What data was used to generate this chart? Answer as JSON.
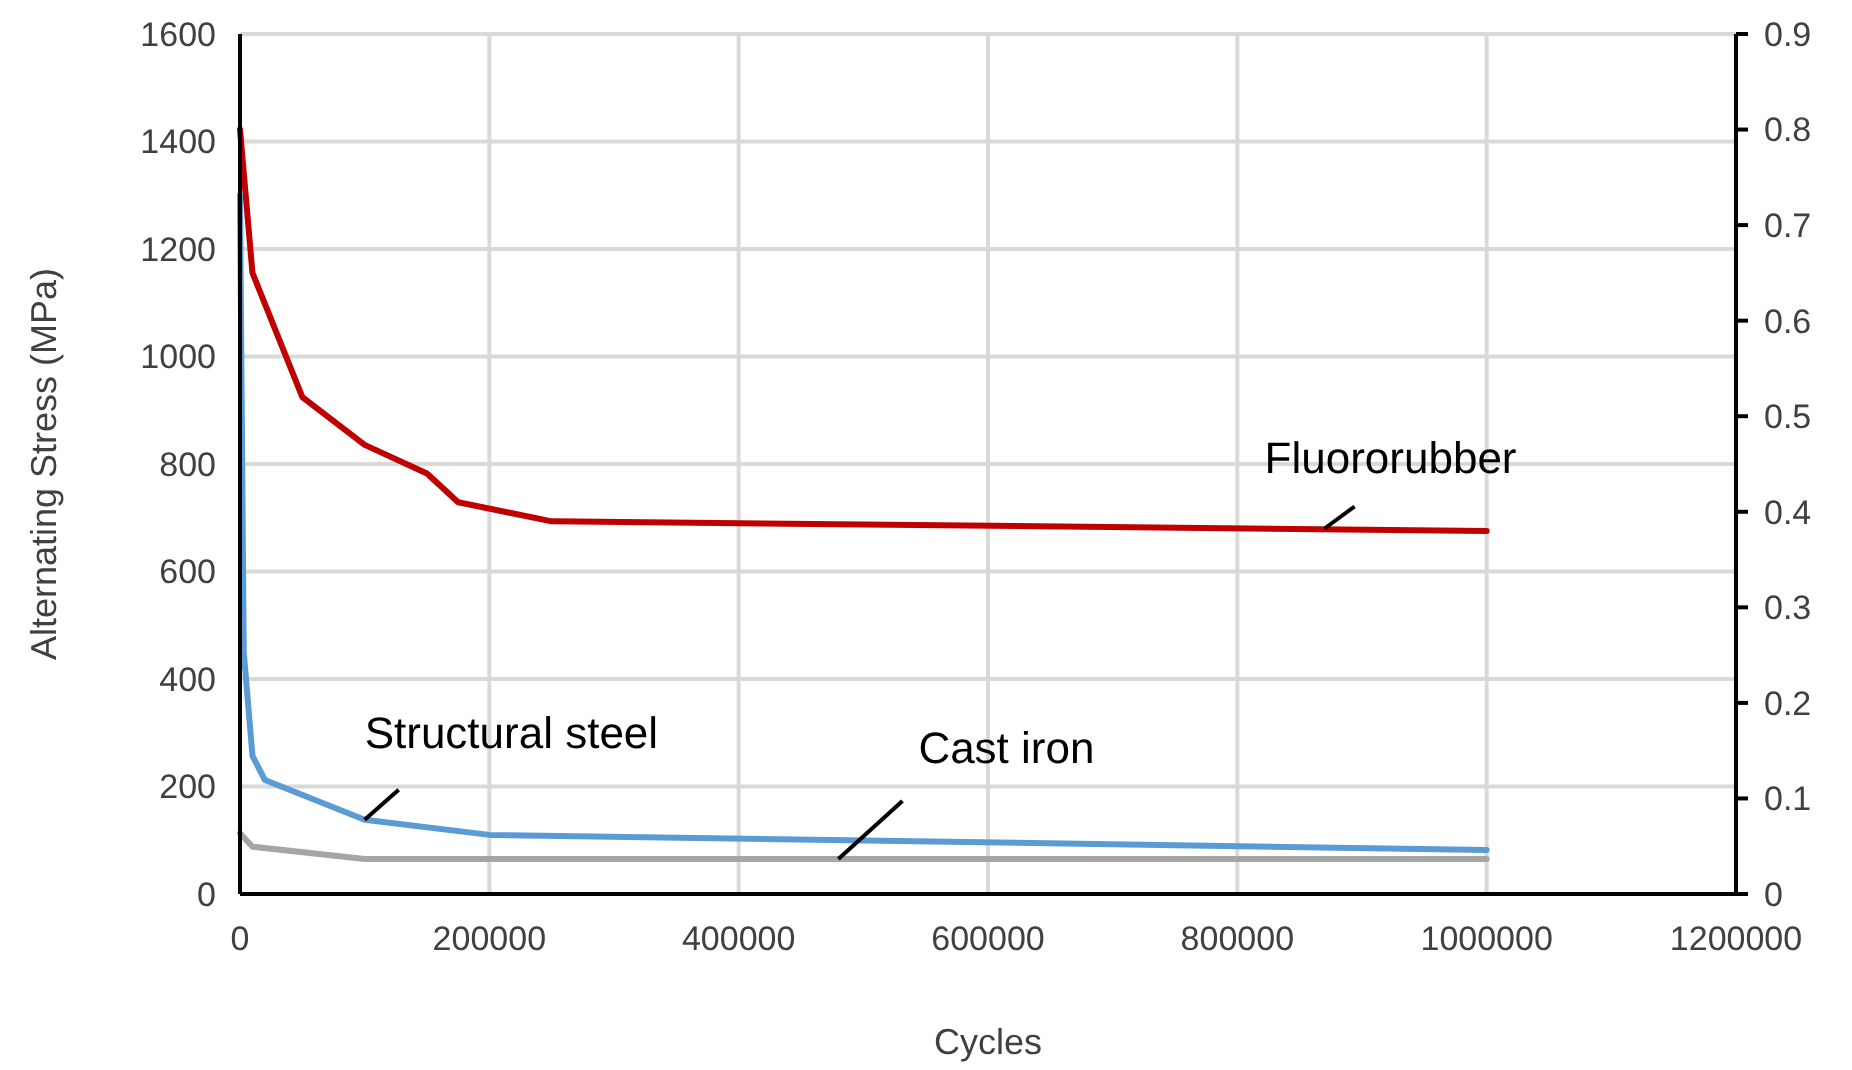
{
  "chart_data": {
    "type": "line",
    "xlabel": "Cycles",
    "ylabel": "Alternating Stress (MPa)",
    "xlim": [
      0,
      1200000
    ],
    "xticks": [
      0,
      200000,
      400000,
      600000,
      800000,
      1000000,
      1200000
    ],
    "ylim": [
      0,
      1600
    ],
    "yticks": [
      0,
      200,
      400,
      600,
      800,
      1000,
      1200,
      1400,
      1600
    ],
    "y2lim": [
      0,
      0.9
    ],
    "y2ticks": [
      0,
      0.1,
      0.2,
      0.3,
      0.4,
      0.5,
      0.6,
      0.7,
      0.8,
      0.9
    ],
    "grid": true,
    "line_style": "solid",
    "marker": "none",
    "series": [
      {
        "color": "#c00000",
        "axis": "y2",
        "x": [
          0,
          10000,
          50000,
          100000,
          150000,
          175000,
          250000,
          1000000
        ],
        "values": [
          0.8,
          0.65,
          0.52,
          0.47,
          0.44,
          0.41,
          0.39,
          0.38
        ]
      },
      {
        "color": "#5b9bd5",
        "x": [
          0,
          3000,
          10000,
          20000,
          100000,
          200000,
          1000000
        ],
        "values": [
          1300,
          450,
          257,
          212,
          138,
          110,
          82
        ]
      },
      {
        "color": "#a5a5a5",
        "x": [
          0,
          10000,
          100000,
          1000000
        ],
        "values": [
          113,
          88,
          65,
          65
        ]
      }
    ],
    "annotations": [
      {
        "text": "Structural steel",
        "x": 100000,
        "y": 138
      },
      {
        "text": "Cast iron",
        "x": 480000,
        "y": 65
      },
      {
        "text": "Fluororubber",
        "x": 870000,
        "y": 680
      }
    ]
  }
}
